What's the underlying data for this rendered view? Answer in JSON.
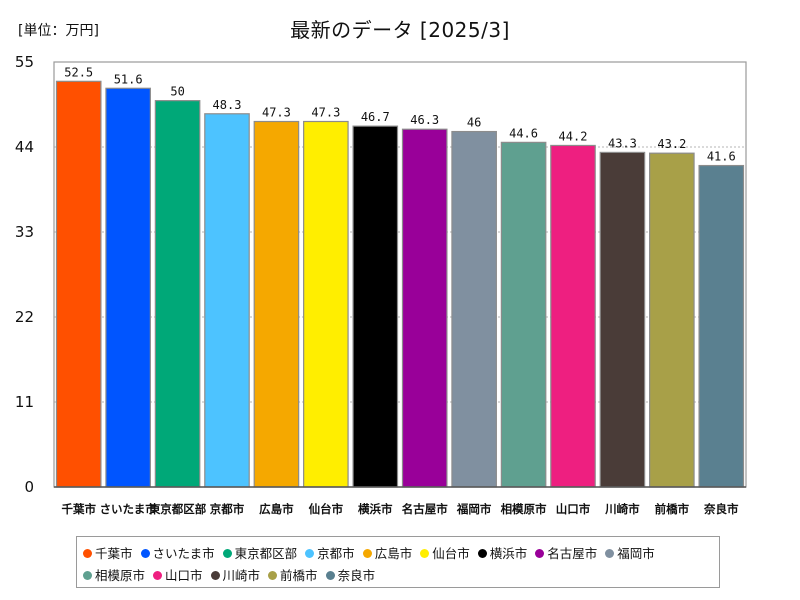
{
  "unit_label": "[単位：万円]",
  "chart_data": {
    "type": "bar",
    "title": "最新のデータ [2025/3]",
    "xlabel": "",
    "ylabel": "",
    "ylim": [
      0,
      55
    ],
    "yticks": [
      0,
      11,
      22,
      33,
      44,
      55
    ],
    "grid": true,
    "legend_position": "bottom",
    "categories": [
      "千葉市",
      "さいたま市",
      "東京都区部",
      "京都市",
      "広島市",
      "仙台市",
      "横浜市",
      "名古屋市",
      "福岡市",
      "相模原市",
      "山口市",
      "川崎市",
      "前橋市",
      "奈良市"
    ],
    "values": [
      52.5,
      51.6,
      50,
      48.3,
      47.3,
      47.3,
      46.7,
      46.3,
      46,
      44.6,
      44.2,
      43.3,
      43.2,
      41.6
    ],
    "colors": [
      "#ff5000",
      "#0055ff",
      "#00a878",
      "#4dc3ff",
      "#f5a800",
      "#ffee00",
      "#000000",
      "#990099",
      "#8090a0",
      "#5fa090",
      "#ee1f80",
      "#4a3c38",
      "#a8a048",
      "#5a8090"
    ]
  }
}
